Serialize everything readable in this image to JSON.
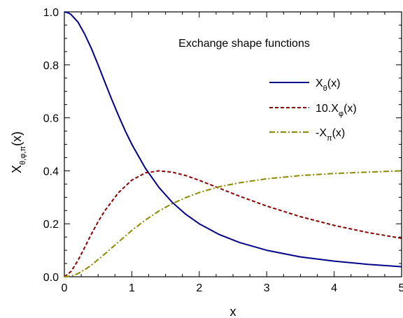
{
  "chart_data": {
    "type": "line",
    "title": "Exchange shape functions",
    "xlabel": "x",
    "ylabel": "X",
    "ylabel_subscript": "θ,φ,π",
    "ylabel_suffix": "(x)",
    "xlim": [
      0,
      5
    ],
    "ylim": [
      0,
      1
    ],
    "x_ticks": [
      0,
      1,
      2,
      3,
      4,
      5
    ],
    "x_tick_labels": [
      "0",
      "1",
      "2",
      "3",
      "4",
      "5"
    ],
    "y_ticks": [
      0.0,
      0.2,
      0.4,
      0.6,
      0.8,
      1.0
    ],
    "y_tick_labels": [
      "0.0",
      "0.2",
      "0.4",
      "0.6",
      "0.8",
      "1.0"
    ],
    "grid": false,
    "legend_position": "top-right",
    "series": [
      {
        "name": "X",
        "name_subscript": "θ",
        "name_suffix": "(x)",
        "style": "solid",
        "color": "#00008b",
        "x": [
          0,
          0.05,
          0.1,
          0.2,
          0.3,
          0.4,
          0.5,
          0.6,
          0.7,
          0.8,
          0.9,
          1.0,
          1.2,
          1.4,
          1.6,
          1.8,
          2.0,
          2.3,
          2.6,
          3.0,
          3.5,
          4.0,
          4.5,
          5.0
        ],
        "y": [
          1.0,
          0.997,
          0.99,
          0.962,
          0.917,
          0.862,
          0.8,
          0.735,
          0.671,
          0.61,
          0.552,
          0.5,
          0.41,
          0.338,
          0.281,
          0.236,
          0.2,
          0.159,
          0.129,
          0.1,
          0.075,
          0.059,
          0.047,
          0.038
        ]
      },
      {
        "name": "10.X",
        "name_subscript": "φ",
        "name_suffix": "(x)",
        "style": "dashed",
        "color": "#8b0000",
        "x": [
          0,
          0.1,
          0.2,
          0.3,
          0.4,
          0.5,
          0.6,
          0.8,
          1.0,
          1.2,
          1.4,
          1.6,
          1.8,
          2.0,
          2.3,
          2.6,
          3.0,
          3.5,
          4.0,
          4.5,
          5.0
        ],
        "y": [
          0.0,
          0.02,
          0.061,
          0.11,
          0.161,
          0.208,
          0.249,
          0.317,
          0.365,
          0.392,
          0.4,
          0.395,
          0.382,
          0.364,
          0.334,
          0.304,
          0.267,
          0.227,
          0.194,
          0.167,
          0.145
        ]
      },
      {
        "name": "-X",
        "name_subscript": "π",
        "name_suffix": "(x)",
        "style": "dashdot",
        "color": "#8b8b00",
        "x": [
          0,
          0.1,
          0.2,
          0.3,
          0.4,
          0.5,
          0.6,
          0.8,
          1.0,
          1.2,
          1.4,
          1.6,
          1.8,
          2.0,
          2.3,
          2.6,
          3.0,
          3.5,
          4.0,
          4.5,
          5.0
        ],
        "y": [
          0.0,
          0.003,
          0.012,
          0.026,
          0.044,
          0.065,
          0.086,
          0.131,
          0.175,
          0.214,
          0.248,
          0.276,
          0.299,
          0.318,
          0.34,
          0.355,
          0.37,
          0.382,
          0.39,
          0.395,
          0.4
        ]
      }
    ]
  }
}
